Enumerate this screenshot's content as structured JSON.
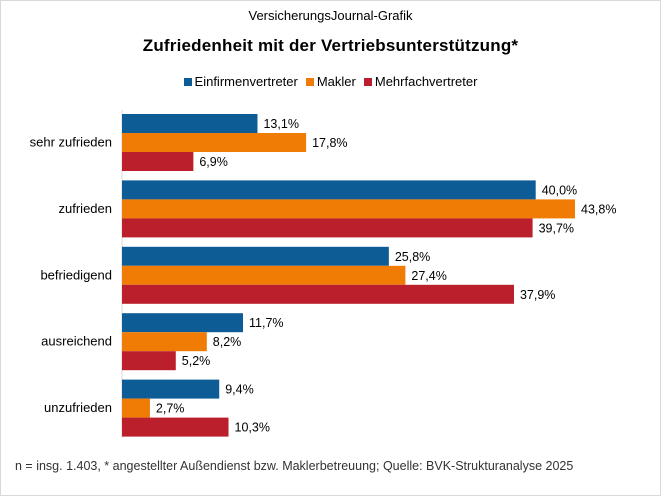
{
  "source_label": "VersicherungsJournal-Grafik",
  "footnote": "n = insg. 1.403, * angestellter Außendienst bzw. Maklerbetreuung;  Quelle: BVK-Strukturanalyse 2025",
  "colors": {
    "einfirmen": "#0e5c95",
    "makler": "#f07b05",
    "mehrfach": "#bb1f2c"
  },
  "chart_data": {
    "type": "bar",
    "orientation": "horizontal",
    "title": "Zufriedenheit  mit der Vertriebsunterstützung*",
    "categories": [
      "sehr zufrieden",
      "zufrieden",
      "befriedigend",
      "ausreichend",
      "unzufrieden"
    ],
    "series": [
      {
        "name": "Einfirmenvertreter",
        "color_key": "einfirmen",
        "values": [
          13.1,
          40.0,
          25.8,
          11.7,
          9.4
        ],
        "labels": [
          "13,1%",
          "40,0%",
          "25,8%",
          "11,7%",
          "9,4%"
        ]
      },
      {
        "name": "Makler",
        "color_key": "makler",
        "values": [
          17.8,
          43.8,
          27.4,
          8.2,
          2.7
        ],
        "labels": [
          "17,8%",
          "43,8%",
          "27,4%",
          "8,2%",
          "2,7%"
        ]
      },
      {
        "name": "Mehrfachvertreter",
        "color_key": "mehrfach",
        "values": [
          6.9,
          39.7,
          37.9,
          5.2,
          10.3
        ],
        "labels": [
          "6,9%",
          "39,7%",
          "37,9%",
          "5,2%",
          "10,3%"
        ]
      }
    ],
    "xlim": [
      0,
      50
    ],
    "legend_position": "top"
  }
}
